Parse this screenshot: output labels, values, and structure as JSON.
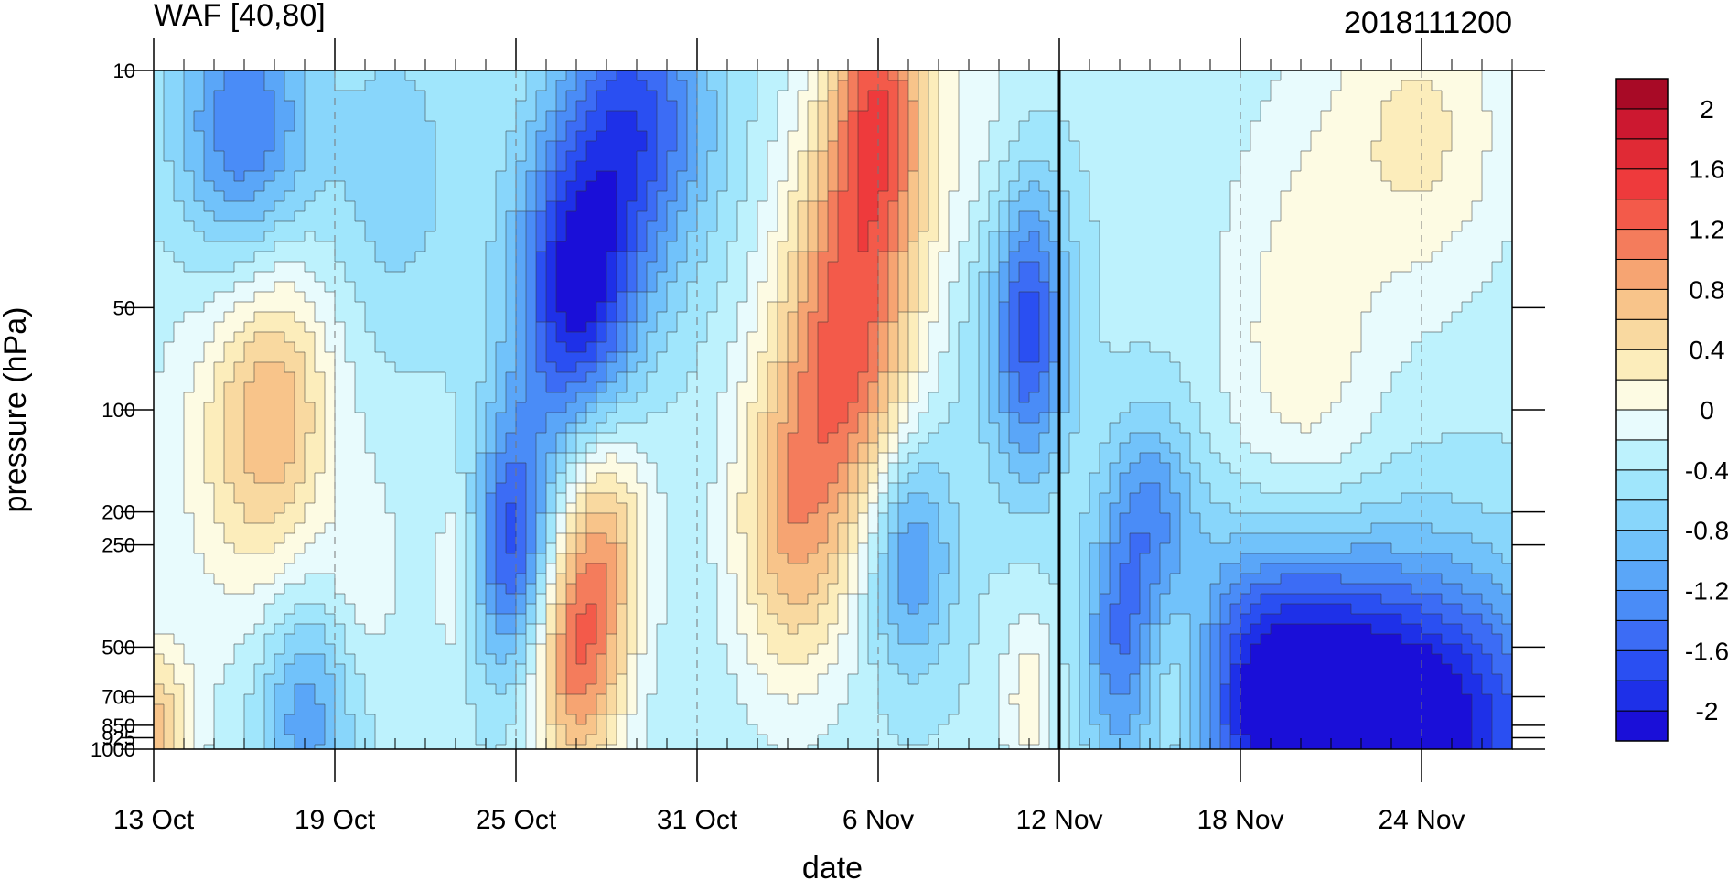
{
  "chart_data": {
    "type": "heatmap",
    "title": "WAF [40,80]",
    "right_title": "2018111200",
    "xlabel": "date",
    "ylabel": "pressure (hPa)",
    "x_ticks": [
      {
        "date": "2018-10-13",
        "label": "13 Oct"
      },
      {
        "date": "2018-10-19",
        "label": "19 Oct"
      },
      {
        "date": "2018-10-25",
        "label": "25 Oct"
      },
      {
        "date": "2018-10-31",
        "label": "31 Oct"
      },
      {
        "date": "2018-11-06",
        "label": "6 Nov"
      },
      {
        "date": "2018-11-12",
        "label": "12 Nov"
      },
      {
        "date": "2018-11-18",
        "label": "18 Nov"
      },
      {
        "date": "2018-11-24",
        "label": "24 Nov"
      }
    ],
    "xlim": [
      "2018-10-13",
      "2018-11-27"
    ],
    "y_ticks": [
      {
        "value": 10,
        "label": "10"
      },
      {
        "value": 50,
        "label": "50"
      },
      {
        "value": 100,
        "label": "100"
      },
      {
        "value": 200,
        "label": "200"
      },
      {
        "value": 250,
        "label": "250"
      },
      {
        "value": 500,
        "label": "500"
      },
      {
        "value": 700,
        "label": "700"
      },
      {
        "value": 850,
        "label": "850"
      },
      {
        "value": 925,
        "label": "925"
      },
      {
        "value": 1000,
        "label": "1000"
      }
    ],
    "ylim": [
      1000,
      10
    ],
    "y_scale": "log",
    "marker_line_date": "2018-11-12",
    "colorbar": {
      "levels": [
        -2.2,
        -2,
        -1.8,
        -1.6,
        -1.4,
        -1.2,
        -1,
        -0.8,
        -0.6,
        -0.4,
        -0.2,
        0,
        0.2,
        0.4,
        0.6,
        0.8,
        1,
        1.2,
        1.4,
        1.6,
        1.8,
        2,
        2.2
      ],
      "colors": [
        "#1a0fd8",
        "#1e30e8",
        "#2a4ff2",
        "#3c6cf5",
        "#4a8cf7",
        "#5aa6f8",
        "#71c2fa",
        "#88d6fb",
        "#a0e6fc",
        "#bdf2fd",
        "#e8fbfd",
        "#fdfbe3",
        "#fcedbb",
        "#f9d9a0",
        "#f8c48a",
        "#f6a472",
        "#f47c5c",
        "#f35a4a",
        "#ee3a3c",
        "#e02a35",
        "#cc1830",
        "#a80a26"
      ],
      "tick_labels": [
        {
          "value": 2,
          "label": "2"
        },
        {
          "value": 1.6,
          "label": "1.6"
        },
        {
          "value": 1.2,
          "label": "1.2"
        },
        {
          "value": 0.8,
          "label": "0.8"
        },
        {
          "value": 0.4,
          "label": "0.4"
        },
        {
          "value": 0,
          "label": "0"
        },
        {
          "value": -0.4,
          "label": "-0.4"
        },
        {
          "value": -0.8,
          "label": "-0.8"
        },
        {
          "value": -1.2,
          "label": "-1.2"
        },
        {
          "value": -1.6,
          "label": "-1.6"
        },
        {
          "value": -2,
          "label": "-2"
        }
      ]
    },
    "features": [
      {
        "date": "2018-11-05",
        "p": 60,
        "value": 1.6,
        "w": 2.2,
        "h": 1.4
      },
      {
        "date": "2018-11-06",
        "p": 12,
        "value": 1.4,
        "w": 1.6,
        "h": 1.0
      },
      {
        "date": "2018-11-03",
        "p": 220,
        "value": 1.0,
        "w": 1.8,
        "h": 1.1
      },
      {
        "date": "2018-11-09",
        "p": 20,
        "value": 0.6,
        "w": 2.0,
        "h": 1.2
      },
      {
        "date": "2018-10-27",
        "p": 520,
        "value": 1.5,
        "w": 1.6,
        "h": 0.9
      },
      {
        "date": "2018-10-28",
        "p": 210,
        "value": 0.8,
        "w": 1.5,
        "h": 0.8
      },
      {
        "date": "2018-10-17",
        "p": 100,
        "value": 1.0,
        "w": 2.0,
        "h": 1.1
      },
      {
        "date": "2018-10-13",
        "p": 900,
        "value": 1.0,
        "w": 1.2,
        "h": 0.6
      },
      {
        "date": "2018-10-15",
        "p": 150,
        "value": 0.3,
        "w": 2.5,
        "h": 1.5
      },
      {
        "date": "2018-11-20",
        "p": 70,
        "value": 0.5,
        "w": 2.6,
        "h": 1.6
      },
      {
        "date": "2018-11-24",
        "p": 15,
        "value": 0.6,
        "w": 3.0,
        "h": 1.1
      },
      {
        "date": "2018-11-16",
        "p": 650,
        "value": 0.6,
        "w": 1.5,
        "h": 0.7
      },
      {
        "date": "2018-11-11",
        "p": 700,
        "value": 0.5,
        "w": 0.9,
        "h": 0.6
      },
      {
        "date": "2018-10-20",
        "p": 300,
        "value": 0.3,
        "w": 1.2,
        "h": 0.7
      },
      {
        "date": "2018-10-23",
        "p": 300,
        "value": 0.4,
        "w": 0.7,
        "h": 0.7
      },
      {
        "date": "2018-10-27",
        "p": 45,
        "value": -1.7,
        "w": 2.0,
        "h": 1.0
      },
      {
        "date": "2018-10-29",
        "p": 14,
        "value": -1.3,
        "w": 2.5,
        "h": 1.0
      },
      {
        "date": "2018-10-25",
        "p": 250,
        "value": -1.4,
        "w": 1.4,
        "h": 0.9
      },
      {
        "date": "2018-10-16",
        "p": 15,
        "value": -1.1,
        "w": 2.2,
        "h": 1.0
      },
      {
        "date": "2018-11-11",
        "p": 55,
        "value": -1.4,
        "w": 1.3,
        "h": 1.0
      },
      {
        "date": "2018-11-07",
        "p": 260,
        "value": -1.0,
        "w": 1.4,
        "h": 0.8
      },
      {
        "date": "2018-11-15",
        "p": 200,
        "value": -0.8,
        "w": 1.5,
        "h": 0.7
      },
      {
        "date": "2018-11-23",
        "p": 850,
        "value": -2.1,
        "w": 5.5,
        "h": 1.1
      },
      {
        "date": "2018-11-19",
        "p": 600,
        "value": -1.0,
        "w": 3.0,
        "h": 1.0
      },
      {
        "date": "2018-10-18",
        "p": 800,
        "value": -0.8,
        "w": 1.5,
        "h": 0.8
      },
      {
        "date": "2018-11-14",
        "p": 500,
        "value": -0.9,
        "w": 1.2,
        "h": 0.8
      },
      {
        "date": "2018-11-09",
        "p": 30,
        "value": -0.4,
        "w": 1.5,
        "h": 1.4
      },
      {
        "date": "2018-10-21",
        "p": 20,
        "value": -0.4,
        "w": 2.0,
        "h": 1.0
      }
    ]
  }
}
